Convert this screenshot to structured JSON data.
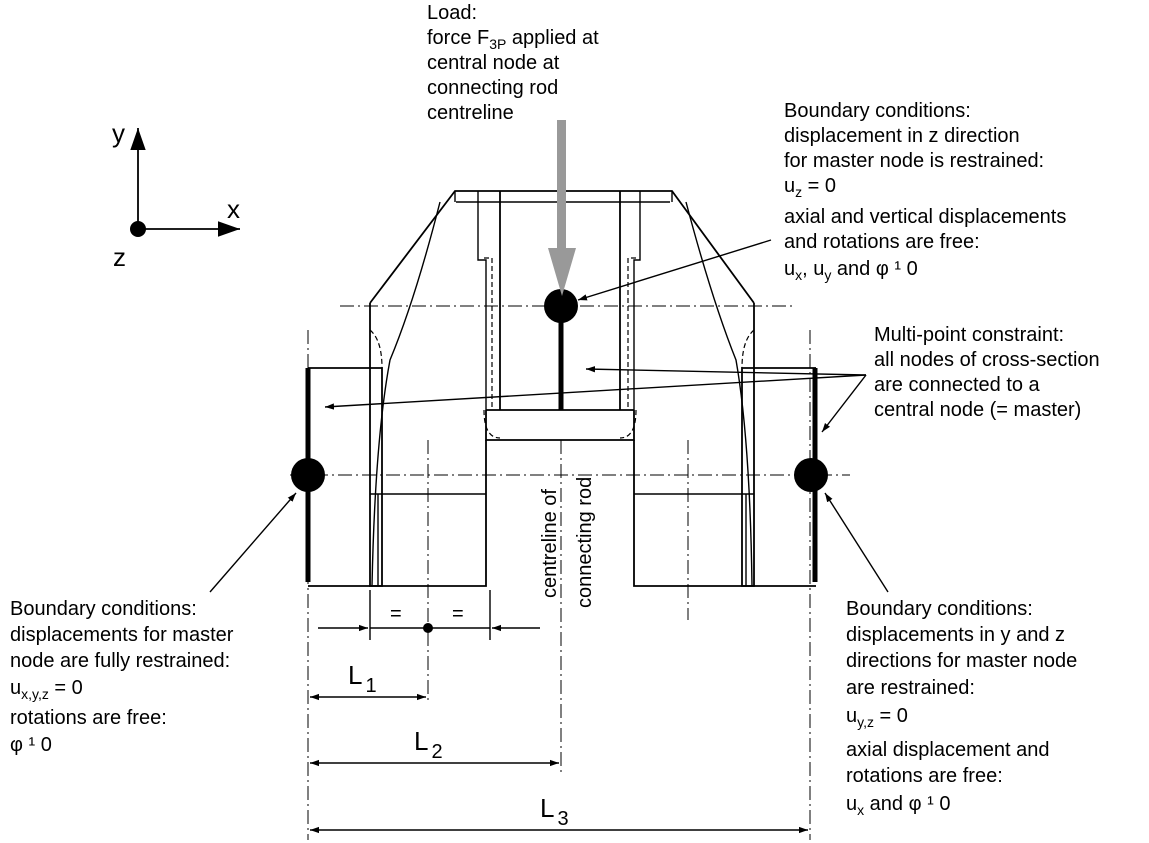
{
  "axes": {
    "y": "y",
    "x": "x",
    "z": "z"
  },
  "load": {
    "line1": "Load:",
    "line2_pre": "force F",
    "line2_sub": "3P",
    "line2_post": " applied at",
    "line3": "central node at",
    "line4": "connecting rod",
    "line5": "centreline"
  },
  "bc_top": {
    "line1": "Boundary conditions:",
    "line2": "displacement in z direction",
    "line3": "for master node is restrained:",
    "line4_pre": "u",
    "line4_sub": "z",
    "line4_post": " = 0",
    "line5": "axial and vertical displacements",
    "line6": "and rotations are free:",
    "line7_a": "u",
    "line7_asub": "x",
    "line7_b": ", u",
    "line7_bsub": "y",
    "line7_c": " and  φ ¹  0"
  },
  "mpc": {
    "line1": "Multi-point constraint:",
    "line2": "all nodes of cross-section",
    "line3": "are connected to a",
    "line4": "central node (= master)"
  },
  "bc_left": {
    "line1": "Boundary conditions:",
    "line2": "displacements for master",
    "line3": "node are fully restrained:",
    "line4_pre": "u",
    "line4_sub": "x,y,z",
    "line4_post": " = 0",
    "line5": "rotations are free:",
    "line6": "φ ¹  0"
  },
  "bc_right": {
    "line1": "Boundary conditions:",
    "line2": "displacements in y and z",
    "line3": "directions for master node",
    "line4": "are restrained:",
    "line5_pre": "u",
    "line5_sub": "y,z",
    "line5_post": " = 0",
    "line6": "axial displacement and",
    "line7": "rotations are free:",
    "line8_pre": "u",
    "line8_sub": "x",
    "line8_post": " and  φ ¹  0"
  },
  "centreline": {
    "line1": "centreline of",
    "line2": "connecting rod"
  },
  "dims": {
    "eq_left": "=",
    "eq_right": "=",
    "L1": "L",
    "L1_sub": "1",
    "L2": "L",
    "L2_sub": "2",
    "L3": "L",
    "L3_sub": "3"
  },
  "colors": {
    "load_arrow": "#999999"
  }
}
